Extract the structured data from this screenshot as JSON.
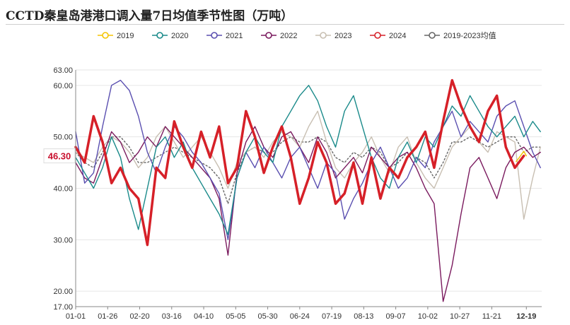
{
  "title": "CCTD秦皇岛港港口调入量7日均值季节性图（万吨）",
  "chart_data": {
    "type": "line",
    "title": "CCTD秦皇岛港港口调入量7日均值季节性图（万吨）",
    "xlabel": "",
    "ylabel": "",
    "ylim": [
      17,
      63
    ],
    "y_ticks": [
      "63.00",
      "60.00",
      "50.00",
      "40.00",
      "30.00",
      "20.00",
      "17.00"
    ],
    "x_ticks": [
      "01-01",
      "01-26",
      "02-20",
      "03-16",
      "04-10",
      "05-05",
      "05-30",
      "06-24",
      "07-19",
      "08-13",
      "09-07",
      "10-02",
      "10-27",
      "11-21",
      "12-19"
    ],
    "highlight_tick": "12-19",
    "current_value": "46.30",
    "legend_position": "top",
    "series": [
      {
        "name": "2019",
        "color": "#f5c400",
        "x": [
          345,
          347,
          349,
          351,
          353
        ],
        "values": [
          45.2,
          45.8,
          46.5,
          47.2,
          46.3
        ]
      },
      {
        "name": "2020",
        "color": "#1a8a8a",
        "x": [
          1,
          8,
          15,
          22,
          29,
          36,
          43,
          50,
          57,
          64,
          71,
          78,
          85,
          92,
          99,
          106,
          113,
          120,
          127,
          134,
          141,
          148,
          155,
          162,
          169,
          176,
          183,
          190,
          197,
          204,
          211,
          218,
          225,
          232,
          239,
          246,
          253,
          260,
          267,
          274,
          281,
          288,
          295,
          302,
          309,
          316,
          323,
          330,
          337,
          344,
          351,
          358,
          364
        ],
        "values": [
          46,
          43,
          40,
          44,
          50,
          46,
          38,
          32,
          40,
          48,
          50,
          46,
          49,
          44,
          41,
          38,
          35,
          31,
          42,
          47,
          50,
          47,
          45,
          52,
          55,
          58,
          60,
          57,
          52,
          48,
          55,
          58,
          52,
          46,
          42,
          40,
          46,
          49,
          45,
          50,
          48,
          52,
          56,
          54,
          58,
          55,
          52,
          50,
          52,
          54,
          50,
          53,
          51
        ]
      },
      {
        "name": "2021",
        "color": "#5a4fb0",
        "x": [
          1,
          8,
          15,
          22,
          29,
          36,
          43,
          50,
          57,
          64,
          71,
          78,
          85,
          92,
          99,
          106,
          113,
          120,
          127,
          134,
          141,
          148,
          155,
          162,
          169,
          176,
          183,
          190,
          197,
          204,
          211,
          218,
          225,
          232,
          239,
          246,
          253,
          260,
          267,
          274,
          281,
          288,
          295,
          302,
          309,
          316,
          323,
          330,
          337,
          344,
          351,
          358,
          364
        ],
        "values": [
          51,
          41,
          43,
          52,
          60,
          61,
          59,
          54,
          47,
          43,
          48,
          52,
          50,
          47,
          45,
          42,
          39,
          30,
          42,
          47,
          44,
          48,
          45,
          42,
          46,
          48,
          44,
          40,
          45,
          43,
          34,
          38,
          41,
          45,
          48,
          44,
          40,
          42,
          46,
          44,
          49,
          52,
          55,
          50,
          53,
          51,
          49,
          54,
          56,
          57,
          52,
          47,
          44
        ]
      },
      {
        "name": "2022",
        "color": "#7a1a5e",
        "x": [
          1,
          8,
          15,
          22,
          29,
          36,
          43,
          50,
          57,
          64,
          71,
          78,
          85,
          92,
          99,
          106,
          113,
          120,
          127,
          134,
          141,
          148,
          155,
          162,
          169,
          176,
          183,
          190,
          197,
          204,
          211,
          218,
          225,
          232,
          239,
          246,
          253,
          260,
          267,
          274,
          281,
          288,
          295,
          302,
          309,
          316,
          323,
          330,
          337,
          344,
          351,
          358,
          364
        ],
        "values": [
          45,
          42,
          41,
          46,
          51,
          49,
          45,
          47,
          50,
          48,
          52,
          50,
          48,
          46,
          44,
          42,
          38,
          27,
          43,
          49,
          52,
          48,
          46,
          50,
          51,
          48,
          45,
          50,
          47,
          42,
          44,
          46,
          43,
          48,
          46,
          44,
          46,
          47,
          44,
          40,
          37,
          18,
          25,
          35,
          44,
          46,
          42,
          38,
          44,
          47,
          48,
          46,
          47
        ]
      },
      {
        "name": "2023",
        "color": "#c8bfb2",
        "x": [
          1,
          8,
          15,
          22,
          29,
          36,
          43,
          50,
          57,
          64,
          71,
          78,
          85,
          92,
          99,
          106,
          113,
          120,
          127,
          134,
          141,
          148,
          155,
          162,
          169,
          176,
          183,
          190,
          197,
          204,
          211,
          218,
          225,
          232,
          239,
          246,
          253,
          260,
          267,
          274,
          281,
          288,
          295,
          302,
          309,
          316,
          323,
          330,
          337,
          344,
          351,
          358,
          364
        ],
        "values": [
          47,
          46,
          45,
          48,
          50,
          49,
          47,
          44,
          46,
          50,
          52,
          49,
          46,
          48,
          50,
          47,
          44,
          40,
          45,
          47,
          48,
          46,
          49,
          51,
          50,
          48,
          52,
          55,
          49,
          44,
          42,
          45,
          47,
          50,
          46,
          43,
          48,
          50,
          45,
          42,
          40,
          44,
          48,
          50,
          52,
          49,
          47,
          51,
          50,
          49,
          34,
          42,
          48
        ]
      },
      {
        "name": "2024",
        "color": "#d62028",
        "width": 3.5,
        "x": [
          1,
          8,
          15,
          22,
          29,
          36,
          43,
          50,
          57,
          64,
          71,
          78,
          85,
          92,
          99,
          106,
          113,
          120,
          127,
          134,
          141,
          148,
          155,
          162,
          169,
          176,
          183,
          190,
          197,
          204,
          211,
          218,
          225,
          232,
          239,
          246,
          253,
          260,
          267,
          274,
          281,
          288,
          295,
          302,
          309,
          316,
          323,
          330,
          337,
          344,
          351
        ],
        "values": [
          48,
          45,
          54,
          49,
          41,
          44,
          40,
          38,
          29,
          44,
          42,
          53,
          48,
          44,
          51,
          46,
          52,
          41,
          44,
          55,
          50,
          43,
          48,
          52,
          46,
          37,
          42,
          49,
          45,
          37,
          39,
          45,
          37,
          46,
          38,
          44,
          42,
          46,
          48,
          51,
          44,
          53,
          61,
          56,
          52,
          49,
          55,
          58,
          48,
          44,
          46.3
        ]
      },
      {
        "name": "2019-2023均值",
        "color": "#666666",
        "dash": true,
        "x": [
          1,
          8,
          15,
          22,
          29,
          36,
          43,
          50,
          57,
          64,
          71,
          78,
          85,
          92,
          99,
          106,
          113,
          120,
          127,
          134,
          141,
          148,
          155,
          162,
          169,
          176,
          183,
          190,
          197,
          204,
          211,
          218,
          225,
          232,
          239,
          246,
          253,
          260,
          267,
          274,
          281,
          288,
          295,
          302,
          309,
          316,
          323,
          330,
          337,
          344,
          351,
          358,
          364
        ],
        "values": [
          47,
          45,
          44,
          47,
          50,
          50,
          48,
          45,
          45,
          46,
          47,
          48,
          47,
          46,
          45,
          44,
          42,
          37,
          43,
          47,
          48,
          47,
          47,
          49,
          50,
          49,
          49,
          50,
          49,
          46,
          45,
          47,
          46,
          48,
          47,
          44,
          45,
          47,
          46,
          45,
          42,
          45,
          49,
          49,
          50,
          49,
          48,
          49,
          50,
          50,
          47,
          48,
          48
        ]
      }
    ]
  }
}
